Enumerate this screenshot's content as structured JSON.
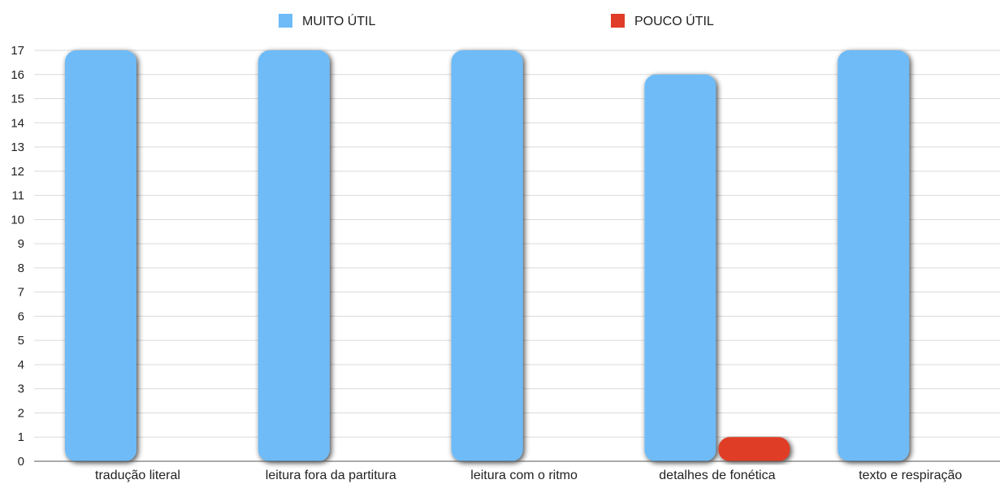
{
  "chart_data": {
    "type": "bar",
    "title": "",
    "xlabel": "",
    "ylabel": "",
    "categories": [
      "tradução literal",
      "leitura fora da partitura",
      "leitura com o ritmo",
      "detalhes de fonética",
      "texto e respiração"
    ],
    "series": [
      {
        "name": "MUITO ÚTIL",
        "color": "#6ebbf7",
        "values": [
          17,
          17,
          17,
          16,
          17
        ]
      },
      {
        "name": "POUCO ÚTIL",
        "color": "#e03c28",
        "values": [
          0,
          0,
          0,
          1,
          0
        ]
      }
    ],
    "ylim": [
      0,
      17
    ],
    "yticks": [
      0,
      1,
      2,
      3,
      4,
      5,
      6,
      7,
      8,
      9,
      10,
      11,
      12,
      13,
      14,
      15,
      16,
      17
    ],
    "grid": true,
    "legend": "top"
  }
}
